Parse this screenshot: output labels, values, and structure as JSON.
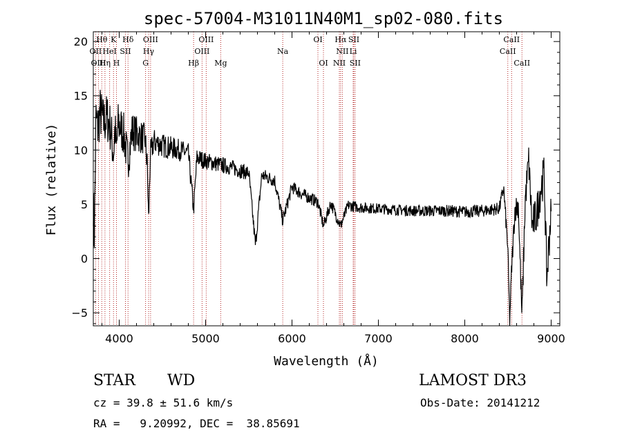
{
  "chart_data": {
    "type": "line",
    "title": "spec-57004-M31011N40M1_sp02-080.fits",
    "xlabel": "Wavelength (Å)",
    "ylabel": "Flux (relative)",
    "xlim": [
      3700,
      9100
    ],
    "ylim": [
      -6.2,
      20.9
    ],
    "xticks": [
      4000,
      5000,
      6000,
      7000,
      8000,
      9000
    ],
    "xtick_labels": [
      "4000",
      "5000",
      "6000",
      "7000",
      "8000",
      "9000"
    ],
    "yticks": [
      -5,
      0,
      5,
      10,
      15,
      20
    ],
    "ytick_labels": [
      "−5",
      "0",
      "5",
      "10",
      "15",
      "20"
    ],
    "grid": false,
    "series": [
      {
        "name": "spectrum",
        "anchors": [
          [
            3700,
            5.5
          ],
          [
            3710,
            1.5
          ],
          [
            3720,
            6.5
          ],
          [
            3730,
            13
          ],
          [
            3750,
            12
          ],
          [
            3780,
            13.5
          ],
          [
            3820,
            12.5
          ],
          [
            3860,
            13
          ],
          [
            3900,
            12
          ],
          [
            3934,
            9.5
          ],
          [
            3950,
            12
          ],
          [
            3968,
            10
          ],
          [
            3990,
            12.5
          ],
          [
            4050,
            11.5
          ],
          [
            4101,
            9
          ],
          [
            4150,
            11.8
          ],
          [
            4200,
            11.5
          ],
          [
            4250,
            11.2
          ],
          [
            4300,
            11
          ],
          [
            4325,
            8.5
          ],
          [
            4340,
            3.5
          ],
          [
            4360,
            9.5
          ],
          [
            4400,
            10.8
          ],
          [
            4500,
            10.4
          ],
          [
            4600,
            10.2
          ],
          [
            4700,
            10
          ],
          [
            4800,
            9.7
          ],
          [
            4861,
            4.5
          ],
          [
            4900,
            9.3
          ],
          [
            5000,
            9
          ],
          [
            5100,
            8.8
          ],
          [
            5200,
            8.6
          ],
          [
            5300,
            8.4
          ],
          [
            5400,
            8.1
          ],
          [
            5500,
            7.9
          ],
          [
            5577,
            1.2
          ],
          [
            5650,
            7.7
          ],
          [
            5800,
            7.2
          ],
          [
            5893,
            3.5
          ],
          [
            6000,
            6.6
          ],
          [
            6100,
            6.0
          ],
          [
            6200,
            5.6
          ],
          [
            6300,
            5.2
          ],
          [
            6364,
            3.0
          ],
          [
            6450,
            5.1
          ],
          [
            6563,
            3.0
          ],
          [
            6650,
            4.9
          ],
          [
            6800,
            4.7
          ],
          [
            7000,
            4.6
          ],
          [
            7200,
            4.5
          ],
          [
            7400,
            4.4
          ],
          [
            7600,
            4.4
          ],
          [
            7800,
            4.4
          ],
          [
            8000,
            4.3
          ],
          [
            8200,
            4.4
          ],
          [
            8400,
            4.6
          ],
          [
            8450,
            6.5
          ],
          [
            8498,
            1.0
          ],
          [
            8520,
            -5.8
          ],
          [
            8542,
            -1.0
          ],
          [
            8580,
            4.5
          ],
          [
            8620,
            5.0
          ],
          [
            8662,
            -5.5
          ],
          [
            8700,
            5.5
          ],
          [
            8740,
            9.0
          ],
          [
            8780,
            3.0
          ],
          [
            8830,
            4.0
          ],
          [
            8880,
            6.5
          ],
          [
            8920,
            7.8
          ],
          [
            8950,
            -2.0
          ],
          [
            8990,
            3.5
          ],
          [
            9000,
            4.0
          ]
        ],
        "noise": [
          [
            3700,
            2.5
          ],
          [
            4000,
            2.2
          ],
          [
            4400,
            1.2
          ],
          [
            5000,
            0.8
          ],
          [
            6000,
            0.6
          ],
          [
            7000,
            0.5
          ],
          [
            8400,
            0.6
          ],
          [
            8800,
            1.8
          ],
          [
            9000,
            2.0
          ]
        ]
      }
    ],
    "lines": [
      {
        "name": "Hθ",
        "x": 3798,
        "row": 0
      },
      {
        "name": "K",
        "x": 3934,
        "row": 0
      },
      {
        "name": "Hδ",
        "x": 4102,
        "row": 0
      },
      {
        "name": "OIII",
        "x": 4363,
        "row": 0
      },
      {
        "name": "OIII",
        "x": 5007,
        "row": 0
      },
      {
        "name": "OI",
        "x": 6300,
        "row": 0
      },
      {
        "name": "Hα",
        "x": 6563,
        "row": 0
      },
      {
        "name": "SII",
        "x": 6716,
        "row": 0
      },
      {
        "name": "CaII",
        "x": 8542,
        "row": 0
      },
      {
        "name": "OII",
        "x": 3727,
        "row": 1
      },
      {
        "name": "HeI",
        "x": 3889,
        "row": 1
      },
      {
        "name": "SII",
        "x": 4072,
        "row": 1
      },
      {
        "name": "Hγ",
        "x": 4340,
        "row": 1
      },
      {
        "name": "OIII",
        "x": 4959,
        "row": 1
      },
      {
        "name": "Na",
        "x": 5893,
        "row": 1
      },
      {
        "name": "NII",
        "x": 6583,
        "row": 1
      },
      {
        "name": "Li",
        "x": 6708,
        "row": 1
      },
      {
        "name": "CaII",
        "x": 8498,
        "row": 1
      },
      {
        "name": "OIII",
        "x": 3760,
        "row": 2
      },
      {
        "name": "Hη",
        "x": 3835,
        "row": 2
      },
      {
        "name": "H",
        "x": 3968,
        "row": 2
      },
      {
        "name": "G",
        "x": 4305,
        "row": 2
      },
      {
        "name": "Hβ",
        "x": 4861,
        "row": 2
      },
      {
        "name": "Mg",
        "x": 5175,
        "row": 2
      },
      {
        "name": "OI",
        "x": 6364,
        "row": 2
      },
      {
        "name": "NII",
        "x": 6548,
        "row": 2
      },
      {
        "name": "SII",
        "x": 6731,
        "row": 2
      },
      {
        "name": "CaII",
        "x": 8662,
        "row": 2
      }
    ],
    "line_color": "#b22222",
    "series_color": "#000000"
  },
  "info": {
    "class_label": "STAR",
    "subclass_label": "WD",
    "survey": "LAMOST DR3",
    "cz": "cz = 39.8 ± 51.6 km/s",
    "obs_date": "Obs-Date: 20141212",
    "radec": "RA =   9.20992, DEC =  38.85691"
  }
}
